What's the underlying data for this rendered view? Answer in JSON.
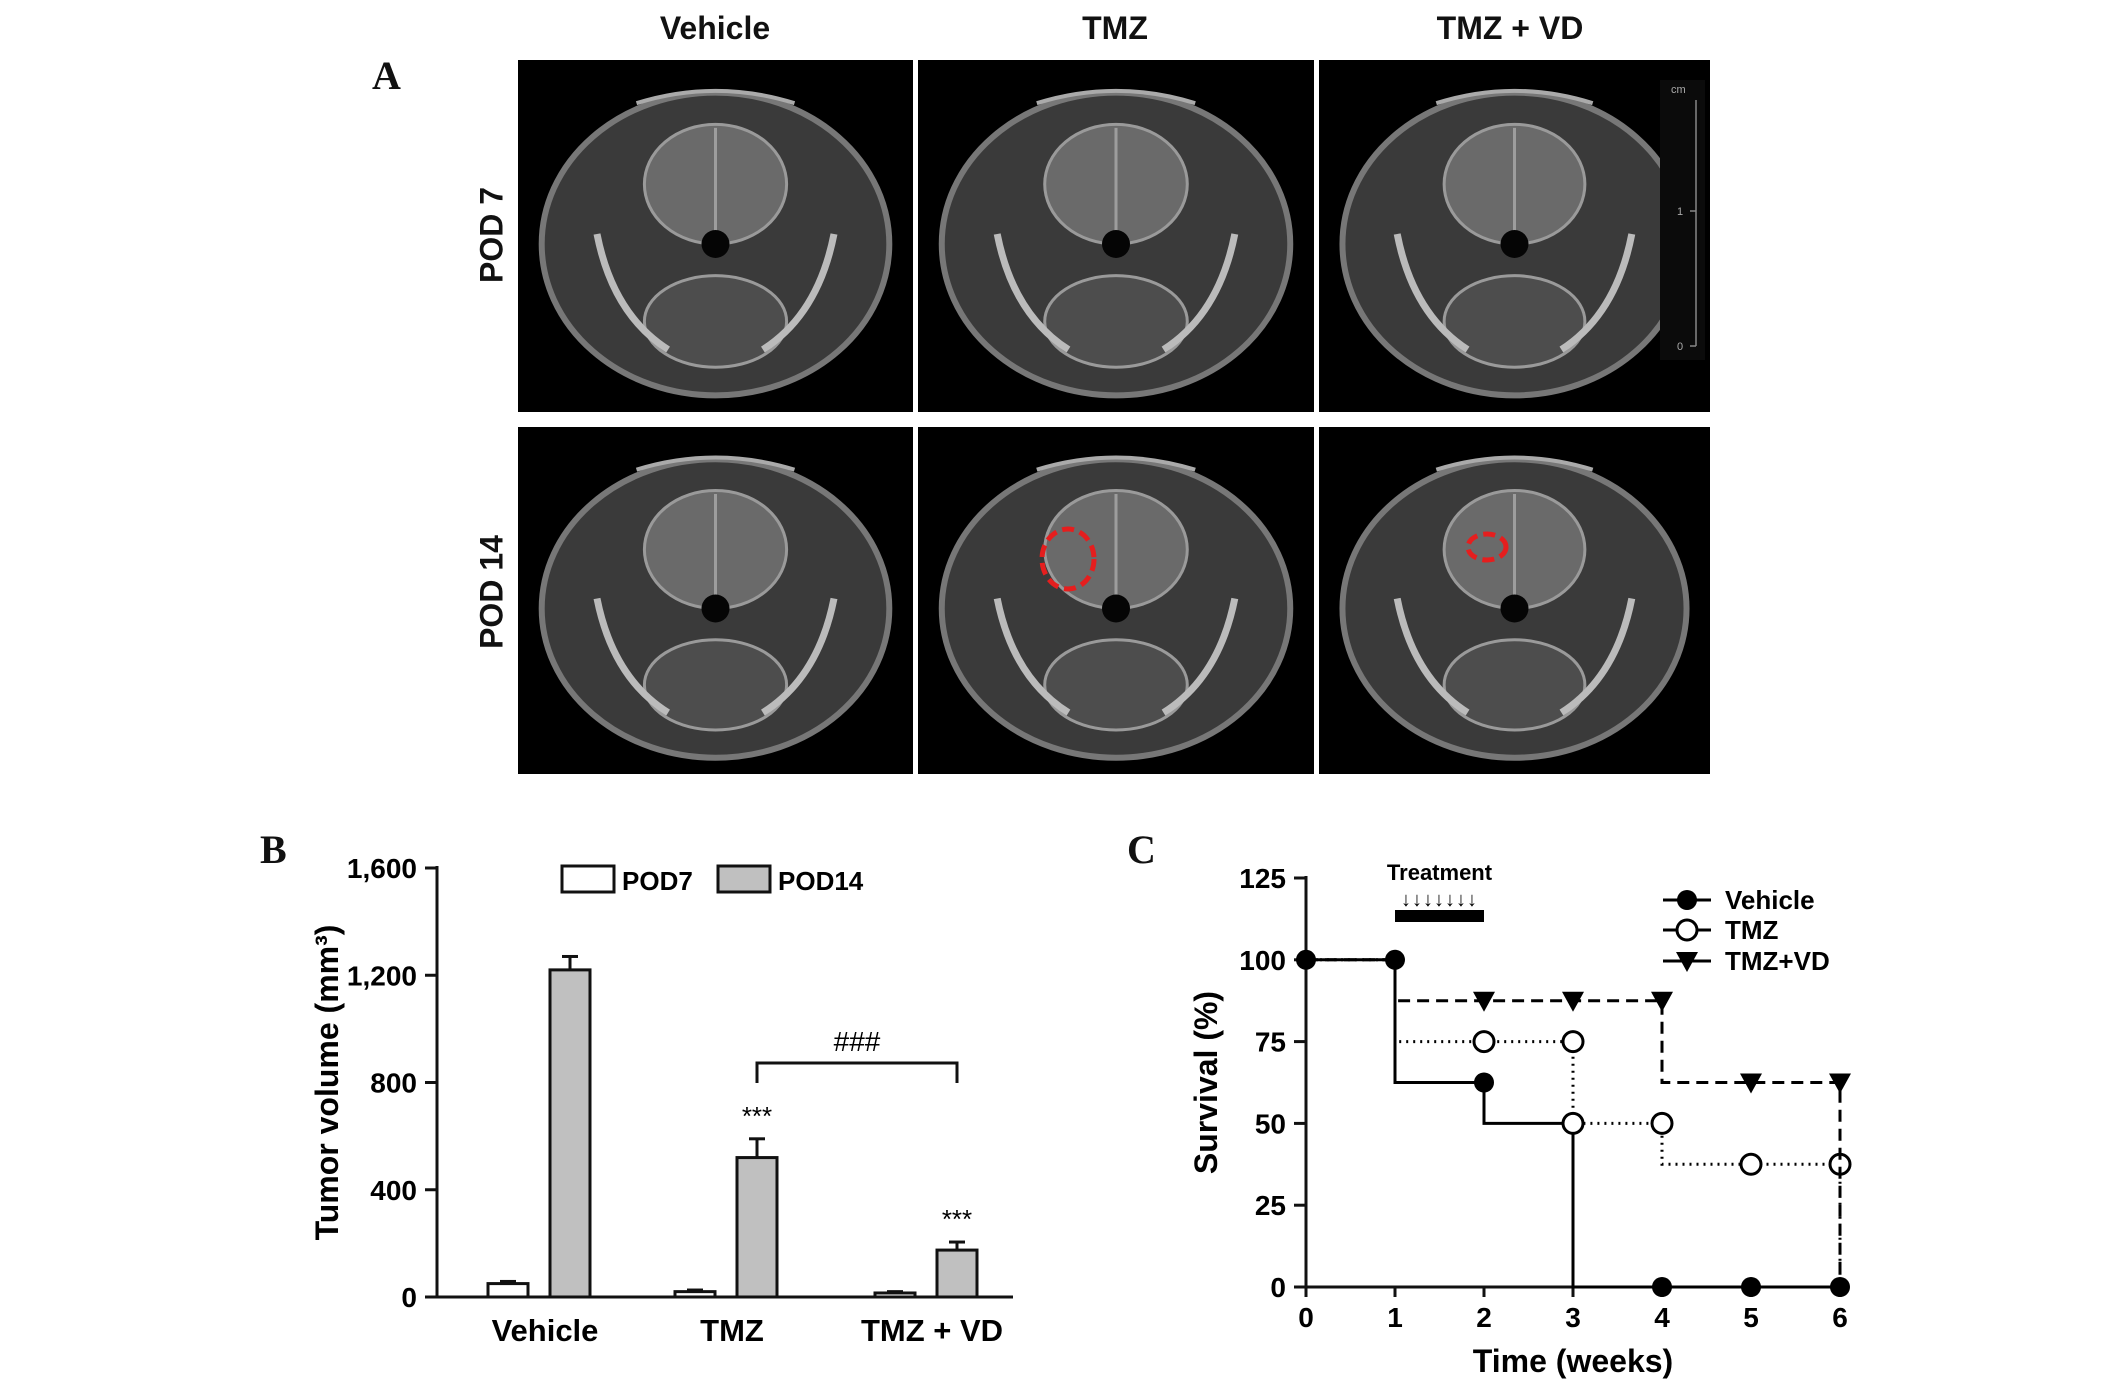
{
  "panel_a": {
    "letter": "A",
    "columns": [
      "Vehicle",
      "TMZ",
      "TMZ + VD"
    ],
    "rows": [
      "POD 7",
      "POD 14"
    ],
    "scale_bar": {
      "unit": "cm",
      "ticks": [
        "1",
        "0"
      ]
    }
  },
  "panel_b": {
    "letter": "B",
    "comparison_label": "###",
    "significance": [
      "***",
      "***"
    ]
  },
  "panel_c": {
    "letter": "C",
    "treatment_label": "Treatment",
    "treatment_arrows": "↓↓↓↓↓↓↓"
  },
  "chart_data": [
    {
      "type": "bar",
      "ylabel": "Tumor volume (mm³)",
      "ylim": [
        0,
        1600
      ],
      "yticks": [
        "0",
        "400",
        "800",
        "1,200",
        "1,600"
      ],
      "categories": [
        "Vehicle",
        "TMZ",
        "TMZ + VD"
      ],
      "legend_position": "top",
      "series": [
        {
          "name": "POD7",
          "color": "#ffffff",
          "values": [
            50,
            20,
            15
          ],
          "errors": [
            8,
            6,
            5
          ]
        },
        {
          "name": "POD14",
          "color": "#c0c0c0",
          "values": [
            1220,
            520,
            175
          ],
          "errors": [
            50,
            70,
            30
          ]
        }
      ]
    },
    {
      "type": "line",
      "xlabel": "Time (weeks)",
      "ylabel": "Survival (%)",
      "xlim": [
        0,
        6
      ],
      "ylim": [
        0,
        125
      ],
      "xticks": [
        "0",
        "1",
        "2",
        "3",
        "4",
        "5",
        "6"
      ],
      "yticks": [
        "0",
        "25",
        "50",
        "75",
        "100",
        "125"
      ],
      "legend_position": "top-right",
      "series": [
        {
          "name": "Vehicle",
          "marker": "filled-circle",
          "style": "solid",
          "steps": [
            [
              0,
              100
            ],
            [
              1,
              62.5
            ],
            [
              2,
              50
            ],
            [
              3,
              0
            ],
            [
              6,
              0
            ]
          ],
          "markers": [
            [
              0,
              100
            ],
            [
              1,
              100
            ],
            [
              2,
              62.5
            ],
            [
              3,
              50
            ],
            [
              4,
              0
            ],
            [
              5,
              0
            ],
            [
              6,
              0
            ]
          ]
        },
        {
          "name": "TMZ",
          "marker": "open-circle",
          "style": "dotted",
          "steps": [
            [
              0,
              100
            ],
            [
              1,
              75
            ],
            [
              3,
              50
            ],
            [
              4,
              37.5
            ],
            [
              6,
              0
            ]
          ],
          "markers": [
            [
              2,
              75
            ],
            [
              3,
              75
            ],
            [
              3,
              50
            ],
            [
              4,
              50
            ],
            [
              5,
              37.5
            ],
            [
              6,
              37.5
            ]
          ]
        },
        {
          "name": "TMZ+VD",
          "marker": "filled-triangle-down",
          "style": "dashed",
          "steps": [
            [
              0,
              100
            ],
            [
              1,
              87.5
            ],
            [
              4,
              62.5
            ],
            [
              6,
              0
            ]
          ],
          "markers": [
            [
              2,
              87.5
            ],
            [
              3,
              87.5
            ],
            [
              4,
              87.5
            ],
            [
              5,
              62.5
            ],
            [
              6,
              62.5
            ]
          ]
        }
      ]
    }
  ]
}
